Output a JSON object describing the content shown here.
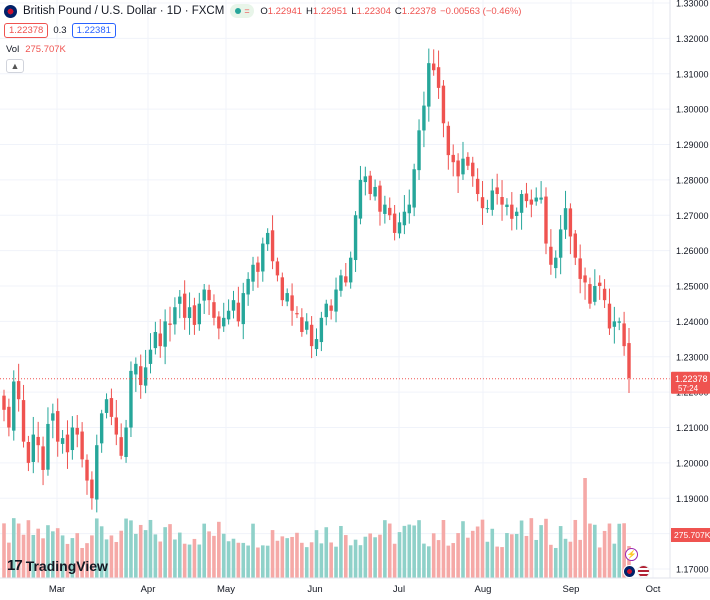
{
  "header": {
    "symbol": "British Pound / U.S. Dollar · 1D · FXCM",
    "ohlc": {
      "o_label": "O",
      "o": "1.22941",
      "h_label": "H",
      "h": "1.22951",
      "l_label": "L",
      "l": "1.22304",
      "c_label": "C",
      "c": "1.22378",
      "change": "−0.00563 (−0.46%)"
    },
    "bid": "1.22378",
    "spread": "0.3",
    "ask": "1.22381",
    "volume_label": "Vol",
    "volume_value": "275.707K",
    "collapse_icon": "chevron-up-icon"
  },
  "price_axis": {
    "labels": [
      "1.33000",
      "1.32000",
      "1.31000",
      "1.30000",
      "1.29000",
      "1.28000",
      "1.27000",
      "1.26000",
      "1.25000",
      "1.24000",
      "1.23000",
      "1.22000",
      "1.21000",
      "1.20000",
      "1.19000",
      "1.18000",
      "1.17000"
    ],
    "last_price": "1.22378",
    "countdown": "57:24",
    "volume_badge": "275.707K"
  },
  "time_axis": {
    "labels": [
      "Mar",
      "Apr",
      "May",
      "Jun",
      "Jul",
      "Aug",
      "Sep",
      "Oct"
    ]
  },
  "logo": {
    "text": "TradingView"
  },
  "colors": {
    "up": "#26a69a",
    "down": "#ef5350",
    "vol_up": "#8fd1c9",
    "vol_down": "#f5a9a7",
    "grid": "#f0f3fa"
  },
  "chart_data": {
    "type": "candlestick",
    "title": "British Pound / U.S. Dollar · 1D · FXCM",
    "ylim": [
      1.165,
      1.33
    ],
    "x_ticks": [
      "Mar",
      "Apr",
      "May",
      "Jun",
      "Jul",
      "Aug",
      "Sep",
      "Oct"
    ],
    "close_series": [
      1.215,
      1.21,
      1.223,
      1.218,
      1.206,
      1.2,
      1.208,
      1.205,
      1.198,
      1.211,
      1.214,
      1.206,
      1.207,
      1.203,
      1.21,
      1.208,
      1.201,
      1.195,
      1.19,
      1.205,
      1.214,
      1.218,
      1.213,
      1.208,
      1.202,
      1.21,
      1.226,
      1.228,
      1.222,
      1.227,
      1.232,
      1.237,
      1.233,
      1.24,
      1.239,
      1.244,
      1.247,
      1.241,
      1.244,
      1.239,
      1.245,
      1.249,
      1.246,
      1.241,
      1.238,
      1.241,
      1.243,
      1.246,
      1.24,
      1.248,
      1.252,
      1.256,
      1.254,
      1.262,
      1.265,
      1.257,
      1.253,
      1.246,
      1.248,
      1.243,
      1.242,
      1.237,
      1.24,
      1.233,
      1.235,
      1.241,
      1.245,
      1.243,
      1.249,
      1.253,
      1.251,
      1.258,
      1.27,
      1.28,
      1.281,
      1.276,
      1.278,
      1.271,
      1.273,
      1.27,
      1.265,
      1.268,
      1.271,
      1.273,
      1.283,
      1.294,
      1.301,
      1.313,
      1.311,
      1.306,
      1.296,
      1.287,
      1.285,
      1.281,
      1.286,
      1.284,
      1.281,
      1.276,
      1.272,
      1.272,
      1.277,
      1.276,
      1.273,
      1.273,
      1.269,
      1.271,
      1.276,
      1.274,
      1.273,
      1.275,
      1.275,
      1.262,
      1.256,
      1.258,
      1.266,
      1.272,
      1.264,
      1.258,
      1.252,
      1.251,
      1.245,
      1.25,
      1.25,
      1.246,
      1.238,
      1.24,
      1.24,
      1.233,
      1.224
    ],
    "last_close": 1.22378,
    "volume_unit": "K",
    "last_volume": 275.707
  }
}
